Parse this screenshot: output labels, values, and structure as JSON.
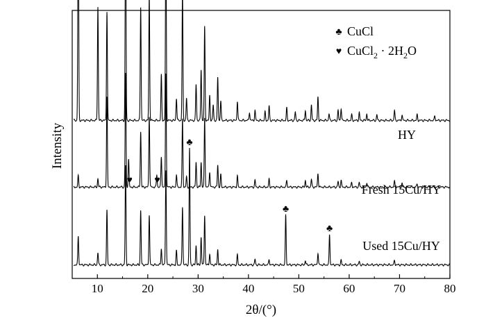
{
  "chart_data": {
    "type": "line",
    "xlabel": "2θ/(°)",
    "ylabel": "Intensity",
    "xlim": [
      5,
      80
    ],
    "xticks": [
      10,
      20,
      30,
      40,
      50,
      60,
      70,
      80
    ],
    "grid": false,
    "y_ticks_shown": false,
    "legend_position": "top-right",
    "legend": [
      {
        "symbol": "♣",
        "label": "CuCl"
      },
      {
        "symbol": "♥",
        "label": "CuCl2·2H2O"
      }
    ],
    "baseline_offsets": {
      "HY": 260,
      "Fresh 15Cu/HY": 140,
      "Used 15Cu/HY": 0
    },
    "series": [
      {
        "name": "HY",
        "baseline": 260,
        "peaks": [
          {
            "x": 6.2,
            "y": 430
          },
          {
            "x": 10.1,
            "y": 205
          },
          {
            "x": 11.9,
            "y": 197
          },
          {
            "x": 15.6,
            "y": 390
          },
          {
            "x": 18.6,
            "y": 205
          },
          {
            "x": 20.3,
            "y": 225
          },
          {
            "x": 22.7,
            "y": 82
          },
          {
            "x": 23.6,
            "y": 355
          },
          {
            "x": 25.7,
            "y": 40
          },
          {
            "x": 26.9,
            "y": 235
          },
          {
            "x": 27.7,
            "y": 40
          },
          {
            "x": 29.6,
            "y": 65
          },
          {
            "x": 30.6,
            "y": 92
          },
          {
            "x": 31.3,
            "y": 168
          },
          {
            "x": 32.3,
            "y": 45
          },
          {
            "x": 33.0,
            "y": 28
          },
          {
            "x": 33.9,
            "y": 78
          },
          {
            "x": 34.5,
            "y": 35
          },
          {
            "x": 37.8,
            "y": 35
          },
          {
            "x": 40.2,
            "y": 15
          },
          {
            "x": 41.3,
            "y": 18
          },
          {
            "x": 43.3,
            "y": 15
          },
          {
            "x": 44.1,
            "y": 26
          },
          {
            "x": 47.6,
            "y": 22
          },
          {
            "x": 49.3,
            "y": 15
          },
          {
            "x": 51.3,
            "y": 18
          },
          {
            "x": 52.5,
            "y": 28
          },
          {
            "x": 53.8,
            "y": 42
          },
          {
            "x": 56.0,
            "y": 12
          },
          {
            "x": 57.8,
            "y": 18
          },
          {
            "x": 58.4,
            "y": 22
          },
          {
            "x": 60.5,
            "y": 10
          },
          {
            "x": 62.0,
            "y": 14
          },
          {
            "x": 63.5,
            "y": 12
          },
          {
            "x": 65.5,
            "y": 10
          },
          {
            "x": 69.0,
            "y": 18
          },
          {
            "x": 70.5,
            "y": 10
          },
          {
            "x": 73.5,
            "y": 10
          },
          {
            "x": 77.0,
            "y": 8
          }
        ]
      },
      {
        "name": "Fresh 15Cu/HY",
        "baseline": 140,
        "peaks": [
          {
            "x": 6.2,
            "y": 20
          },
          {
            "x": 10.1,
            "y": 15
          },
          {
            "x": 11.9,
            "y": 162
          },
          {
            "x": 15.6,
            "y": 205
          },
          {
            "x": 16.2,
            "y": 50
          },
          {
            "x": 18.6,
            "y": 100
          },
          {
            "x": 20.3,
            "y": 128
          },
          {
            "x": 21.8,
            "y": 22
          },
          {
            "x": 22.7,
            "y": 55
          },
          {
            "x": 23.6,
            "y": 205
          },
          {
            "x": 25.7,
            "y": 22
          },
          {
            "x": 26.9,
            "y": 122
          },
          {
            "x": 27.7,
            "y": 18
          },
          {
            "x": 29.6,
            "y": 45
          },
          {
            "x": 30.6,
            "y": 45
          },
          {
            "x": 31.3,
            "y": 125
          },
          {
            "x": 32.3,
            "y": 28
          },
          {
            "x": 33.9,
            "y": 40
          },
          {
            "x": 34.5,
            "y": 22
          },
          {
            "x": 37.8,
            "y": 20
          },
          {
            "x": 41.3,
            "y": 12
          },
          {
            "x": 44.1,
            "y": 14
          },
          {
            "x": 47.6,
            "y": 12
          },
          {
            "x": 51.3,
            "y": 12
          },
          {
            "x": 52.5,
            "y": 14
          },
          {
            "x": 53.8,
            "y": 25
          },
          {
            "x": 57.8,
            "y": 10
          },
          {
            "x": 58.4,
            "y": 12
          },
          {
            "x": 60.5,
            "y": 8
          },
          {
            "x": 62.0,
            "y": 8
          },
          {
            "x": 63.5,
            "y": 8
          },
          {
            "x": 69.0,
            "y": 10
          },
          {
            "x": 70.5,
            "y": 6
          },
          {
            "x": 73.5,
            "y": 6
          }
        ]
      },
      {
        "name": "Used 15Cu/HY",
        "baseline": 0,
        "peaks": [
          {
            "x": 6.2,
            "y": 52
          },
          {
            "x": 10.1,
            "y": 22
          },
          {
            "x": 11.9,
            "y": 98
          },
          {
            "x": 15.6,
            "y": 178
          },
          {
            "x": 18.6,
            "y": 98
          },
          {
            "x": 20.3,
            "y": 90
          },
          {
            "x": 22.7,
            "y": 30
          },
          {
            "x": 23.6,
            "y": 172
          },
          {
            "x": 25.7,
            "y": 25
          },
          {
            "x": 26.9,
            "y": 105
          },
          {
            "x": 28.3,
            "y": 210
          },
          {
            "x": 29.6,
            "y": 35
          },
          {
            "x": 30.6,
            "y": 50
          },
          {
            "x": 31.3,
            "y": 90
          },
          {
            "x": 32.3,
            "y": 20
          },
          {
            "x": 33.9,
            "y": 28
          },
          {
            "x": 37.8,
            "y": 18
          },
          {
            "x": 41.3,
            "y": 10
          },
          {
            "x": 44.1,
            "y": 10
          },
          {
            "x": 47.4,
            "y": 90
          },
          {
            "x": 51.3,
            "y": 8
          },
          {
            "x": 53.8,
            "y": 22
          },
          {
            "x": 56.1,
            "y": 55
          },
          {
            "x": 58.4,
            "y": 8
          },
          {
            "x": 62.0,
            "y": 6
          },
          {
            "x": 69.0,
            "y": 8
          }
        ]
      }
    ],
    "annotations": [
      {
        "symbol": "♥",
        "x": 16.4,
        "series": "Fresh 15Cu/HY"
      },
      {
        "symbol": "♥",
        "x": 21.9,
        "series": "Fresh 15Cu/HY"
      },
      {
        "symbol": "♣",
        "x": 28.3,
        "series": "Used 15Cu/HY"
      },
      {
        "symbol": "♣",
        "x": 47.4,
        "series": "Used 15Cu/HY"
      },
      {
        "symbol": "♣",
        "x": 56.1,
        "series": "Used 15Cu/HY"
      }
    ],
    "series_labels": [
      "HY",
      "Fresh 15Cu/HY",
      "Used 15Cu/HY"
    ]
  }
}
